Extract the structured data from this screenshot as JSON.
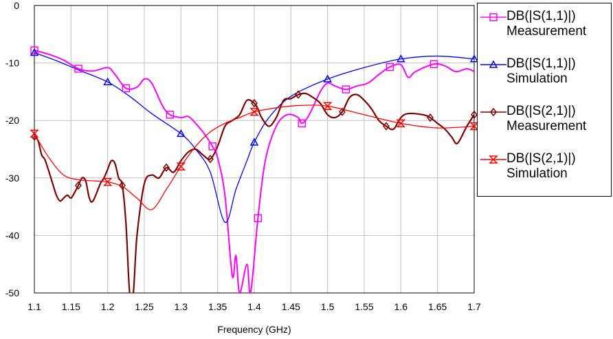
{
  "chart_data": {
    "type": "line",
    "title": "",
    "xlabel": "Frequency (GHz)",
    "ylabel": "",
    "xlim": [
      1.1,
      1.7
    ],
    "ylim": [
      -50,
      0
    ],
    "x_ticks": [
      "1.1",
      "1.15",
      "1.2",
      "1.25",
      "1.3",
      "1.35",
      "1.4",
      "1.45",
      "1.5",
      "1.55",
      "1.6",
      "1.65",
      "1.7"
    ],
    "y_ticks": [
      "0",
      "-10",
      "-20",
      "-30",
      "-40",
      "-50"
    ],
    "grid": true,
    "legend_position": "right",
    "series": [
      {
        "name": "DB(|S(1,1)|)\nMeasurement",
        "color": "#ff00ff",
        "marker": "square",
        "points": [
          [
            1.1,
            -7.8
          ],
          [
            1.12,
            -8.5
          ],
          [
            1.14,
            -9.5
          ],
          [
            1.16,
            -11.0
          ],
          [
            1.18,
            -11.4
          ],
          [
            1.2,
            -10.8
          ],
          [
            1.21,
            -12.0
          ],
          [
            1.225,
            -14.4
          ],
          [
            1.24,
            -14.2
          ],
          [
            1.25,
            -12.8
          ],
          [
            1.26,
            -13.5
          ],
          [
            1.275,
            -17.5
          ],
          [
            1.285,
            -19.0
          ],
          [
            1.3,
            -19.5
          ],
          [
            1.31,
            -19.3
          ],
          [
            1.32,
            -20.5
          ],
          [
            1.33,
            -22.0
          ],
          [
            1.343,
            -24.5
          ],
          [
            1.35,
            -26.5
          ],
          [
            1.36,
            -33.0
          ],
          [
            1.37,
            -47.0
          ],
          [
            1.375,
            -43.5
          ],
          [
            1.38,
            -50.0
          ],
          [
            1.39,
            -45.0
          ],
          [
            1.395,
            -50.0
          ],
          [
            1.405,
            -37.0
          ],
          [
            1.415,
            -27.0
          ],
          [
            1.43,
            -21.0
          ],
          [
            1.445,
            -19.0
          ],
          [
            1.46,
            -19.5
          ],
          [
            1.465,
            -20.5
          ],
          [
            1.475,
            -19.0
          ],
          [
            1.49,
            -15.0
          ],
          [
            1.5,
            -13.5
          ],
          [
            1.51,
            -14.0
          ],
          [
            1.525,
            -14.6
          ],
          [
            1.54,
            -14.0
          ],
          [
            1.555,
            -13.5
          ],
          [
            1.57,
            -12.0
          ],
          [
            1.585,
            -10.7
          ],
          [
            1.6,
            -10.3
          ],
          [
            1.61,
            -12.5
          ],
          [
            1.62,
            -11.5
          ],
          [
            1.645,
            -10.2
          ],
          [
            1.66,
            -10.5
          ],
          [
            1.675,
            -11.5
          ],
          [
            1.69,
            -11.0
          ],
          [
            1.7,
            -11.5
          ]
        ],
        "marker_x": [
          1.1,
          1.16,
          1.225,
          1.285,
          1.343,
          1.405,
          1.465,
          1.525,
          1.585,
          1.645
        ]
      },
      {
        "name": "DB(|S(1,1)|)\nSimulation",
        "color": "#0000ff",
        "marker": "triangle-up",
        "points": [
          [
            1.1,
            -8.2
          ],
          [
            1.13,
            -9.6
          ],
          [
            1.16,
            -11.2
          ],
          [
            1.2,
            -13.3
          ],
          [
            1.23,
            -15.8
          ],
          [
            1.26,
            -18.8
          ],
          [
            1.3,
            -22.3
          ],
          [
            1.32,
            -25.0
          ],
          [
            1.34,
            -29.0
          ],
          [
            1.36,
            -37.7
          ],
          [
            1.375,
            -32.0
          ],
          [
            1.39,
            -27.0
          ],
          [
            1.4,
            -23.8
          ],
          [
            1.42,
            -19.5
          ],
          [
            1.45,
            -15.8
          ],
          [
            1.5,
            -12.8
          ],
          [
            1.55,
            -10.8
          ],
          [
            1.6,
            -9.3
          ],
          [
            1.65,
            -8.8
          ],
          [
            1.7,
            -9.3
          ]
        ],
        "marker_x": [
          1.1,
          1.2,
          1.3,
          1.4,
          1.5,
          1.6,
          1.7
        ]
      },
      {
        "name": "DB(|S(2,1)|)\nMeasurement",
        "color": "#800000",
        "marker": "diamond",
        "points": [
          [
            1.1,
            -22.8
          ],
          [
            1.105,
            -23.5
          ],
          [
            1.11,
            -26.0
          ],
          [
            1.115,
            -27.0
          ],
          [
            1.125,
            -31.0
          ],
          [
            1.13,
            -33.0
          ],
          [
            1.135,
            -34.0
          ],
          [
            1.14,
            -33.5
          ],
          [
            1.145,
            -33.0
          ],
          [
            1.15,
            -33.5
          ],
          [
            1.155,
            -32.5
          ],
          [
            1.16,
            -31.3
          ],
          [
            1.165,
            -30.0
          ],
          [
            1.17,
            -30.5
          ],
          [
            1.175,
            -33.5
          ],
          [
            1.18,
            -34.0
          ],
          [
            1.19,
            -31.0
          ],
          [
            1.195,
            -30.0
          ],
          [
            1.2,
            -28.5
          ],
          [
            1.205,
            -27.0
          ],
          [
            1.21,
            -27.5
          ],
          [
            1.215,
            -30.0
          ],
          [
            1.22,
            -31.3
          ],
          [
            1.225,
            -38.0
          ],
          [
            1.23,
            -50.0
          ],
          [
            1.235,
            -50.0
          ],
          [
            1.24,
            -40.0
          ],
          [
            1.25,
            -31.0
          ],
          [
            1.26,
            -29.5
          ],
          [
            1.27,
            -30.0
          ],
          [
            1.28,
            -28.2
          ],
          [
            1.29,
            -29.0
          ],
          [
            1.3,
            -27.0
          ],
          [
            1.31,
            -25.5
          ],
          [
            1.32,
            -25.0
          ],
          [
            1.33,
            -26.0
          ],
          [
            1.34,
            -26.7
          ],
          [
            1.35,
            -24.5
          ],
          [
            1.36,
            -21.0
          ],
          [
            1.37,
            -20.0
          ],
          [
            1.38,
            -19.0
          ],
          [
            1.39,
            -16.5
          ],
          [
            1.4,
            -17.0
          ],
          [
            1.405,
            -18.0
          ],
          [
            1.41,
            -19.5
          ],
          [
            1.42,
            -21.0
          ],
          [
            1.43,
            -19.5
          ],
          [
            1.44,
            -16.5
          ],
          [
            1.45,
            -16.2
          ],
          [
            1.46,
            -15.5
          ],
          [
            1.47,
            -15.3
          ],
          [
            1.48,
            -16.0
          ],
          [
            1.49,
            -17.0
          ],
          [
            1.5,
            -19.0
          ],
          [
            1.51,
            -19.5
          ],
          [
            1.52,
            -18.5
          ],
          [
            1.53,
            -16.0
          ],
          [
            1.54,
            -15.5
          ],
          [
            1.55,
            -16.5
          ],
          [
            1.56,
            -18.0
          ],
          [
            1.57,
            -20.0
          ],
          [
            1.58,
            -21.0
          ],
          [
            1.59,
            -21.5
          ],
          [
            1.6,
            -19.5
          ],
          [
            1.61,
            -18.8
          ],
          [
            1.63,
            -19.0
          ],
          [
            1.64,
            -19.5
          ],
          [
            1.65,
            -20.5
          ],
          [
            1.66,
            -21.5
          ],
          [
            1.67,
            -23.0
          ],
          [
            1.675,
            -24.0
          ],
          [
            1.68,
            -23.5
          ],
          [
            1.69,
            -21.0
          ],
          [
            1.7,
            -19.0
          ]
        ],
        "marker_x": [
          1.1,
          1.16,
          1.22,
          1.28,
          1.34,
          1.4,
          1.46,
          1.52,
          1.58,
          1.64,
          1.7
        ]
      },
      {
        "name": "DB(|S(2,1)|)\nSimulation",
        "color": "#ff0000",
        "marker": "hourglass",
        "points": [
          [
            1.1,
            -22.3
          ],
          [
            1.12,
            -26.5
          ],
          [
            1.14,
            -29.5
          ],
          [
            1.16,
            -30.3
          ],
          [
            1.18,
            -30.5
          ],
          [
            1.2,
            -30.7
          ],
          [
            1.22,
            -31.5
          ],
          [
            1.24,
            -33.5
          ],
          [
            1.26,
            -35.5
          ],
          [
            1.28,
            -32.0
          ],
          [
            1.3,
            -28.0
          ],
          [
            1.32,
            -24.5
          ],
          [
            1.34,
            -22.0
          ],
          [
            1.36,
            -20.5
          ],
          [
            1.38,
            -19.5
          ],
          [
            1.4,
            -18.5
          ],
          [
            1.43,
            -17.8
          ],
          [
            1.46,
            -17.4
          ],
          [
            1.5,
            -17.5
          ],
          [
            1.55,
            -19.0
          ],
          [
            1.6,
            -20.5
          ],
          [
            1.65,
            -21.3
          ],
          [
            1.7,
            -21.0
          ]
        ],
        "marker_x": [
          1.1,
          1.2,
          1.3,
          1.4,
          1.5,
          1.6,
          1.7
        ]
      }
    ]
  }
}
